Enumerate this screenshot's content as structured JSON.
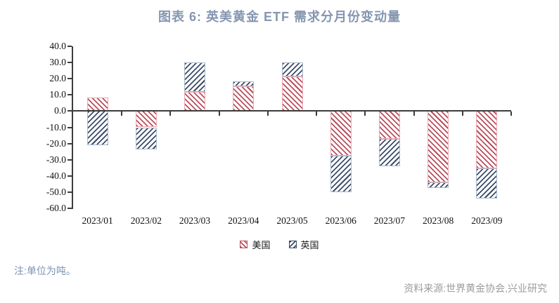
{
  "note": "注:单位为吨。",
  "source": "资料来源:世界黄金协会,兴业研究",
  "colors": {
    "title_blue": "#8496b0",
    "note_blue": "#7d95b3",
    "source_gray": "#9c9c9c",
    "axis_black": "#3c3c3c",
    "us_stripe": "#b8505f",
    "us_border": "#eeaab3",
    "uk_stripe": "#3c4c68",
    "uk_border": "#a9bacc"
  },
  "chart_data": {
    "type": "bar",
    "stacked": true,
    "grid": false,
    "title": "图表 6: 英美黄金 ETF 需求分月份变动量",
    "xlabel": "",
    "ylabel": "",
    "unit": "吨",
    "categories": [
      "2023/01",
      "2023/02",
      "2023/03",
      "2023/04",
      "2023/05",
      "2023/06",
      "2023/07",
      "2023/08",
      "2023/09"
    ],
    "series": [
      {
        "name": "美国",
        "hatch": "\\",
        "stripe_color": "#b8505f",
        "border_color": "#eeaab3",
        "values": [
          8.5,
          -10.0,
          12.0,
          15.5,
          21.5,
          -27.5,
          -17.0,
          -44.0,
          -35.5
        ]
      },
      {
        "name": "英国",
        "hatch": "/",
        "stripe_color": "#3c4c68",
        "border_color": "#a9bacc",
        "values": [
          -21.0,
          -13.5,
          18.0,
          3.0,
          8.5,
          -22.5,
          -17.0,
          -3.5,
          -18.5
        ]
      }
    ],
    "ylim": [
      -60,
      40
    ],
    "ytick_step": 10,
    "yticks": [
      "40.0",
      "30.0",
      "20.0",
      "10.0",
      "0.0",
      "-10.0",
      "-20.0",
      "-30.0",
      "-40.0",
      "-50.0",
      "-60.0"
    ],
    "legend_position": "bottom"
  }
}
